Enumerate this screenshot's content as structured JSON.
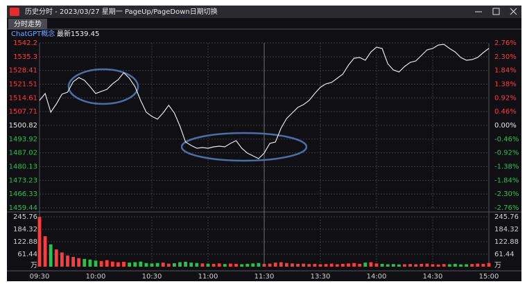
{
  "window": {
    "title": "历史分时 - 2023/03/27 星期一 PageUp/PageDown日期切换",
    "tab": "分时走势"
  },
  "chart_data": [
    {
      "type": "line",
      "legend_latest": "最新1539.45",
      "xlim": [
        0,
        80
      ],
      "xticks": [
        {
          "value": 0,
          "label": "09:30"
        },
        {
          "value": 10,
          "label": "10:00"
        },
        {
          "value": 20,
          "label": "10:30"
        },
        {
          "value": 30,
          "label": "11:00"
        },
        {
          "value": 40,
          "label": "11:30"
        },
        {
          "value": 50,
          "label": "13:30"
        },
        {
          "value": 60,
          "label": "14:00"
        },
        {
          "value": 70,
          "label": "14:30"
        },
        {
          "value": 80,
          "label": "15:00"
        }
      ],
      "ylim": [
        1459.44,
        1542.2
      ],
      "yticks": [
        1542.2,
        1535.3,
        1528.41,
        1521.51,
        1514.61,
        1507.71,
        1500.82,
        1493.92,
        1487.02,
        1480.13,
        1473.23,
        1466.33,
        1459.44
      ],
      "y2lim": [
        -2.76,
        2.76
      ],
      "y2ticks": [
        {
          "value": 2.76,
          "label": "2.76%"
        },
        {
          "value": 2.3,
          "label": "2.30%"
        },
        {
          "value": 1.84,
          "label": "1.84%"
        },
        {
          "value": 1.38,
          "label": "1.38%"
        },
        {
          "value": 0.92,
          "label": "0.92%"
        },
        {
          "value": 0.46,
          "label": "0.46%"
        },
        {
          "value": 0.0,
          "label": "0.00%"
        },
        {
          "value": -0.46,
          "label": "-0.46%"
        },
        {
          "value": -0.92,
          "label": "-0.92%"
        },
        {
          "value": -1.38,
          "label": "-1.38%"
        },
        {
          "value": -1.84,
          "label": "-1.84%"
        },
        {
          "value": -2.3,
          "label": "-2.30%"
        },
        {
          "value": -2.76,
          "label": "-2.76%"
        }
      ],
      "grid": true,
      "up_color": "#ff3b3b",
      "down_color": "#27c24c",
      "flat_color": "#e8e8e8",
      "series": [
        {
          "name": "ChatGPT概念",
          "color": "#e6e6e6",
          "values": [
            1513.34,
            1516.82,
            1507.43,
            1511.6,
            1516.47,
            1517.51,
            1522.73,
            1524.81,
            1523.42,
            1520.29,
            1516.82,
            1517.86,
            1518.9,
            1521.68,
            1523.77,
            1527.25,
            1524.47,
            1520.29,
            1513.34,
            1507.43,
            1505.34,
            1503.95,
            1507.08,
            1510.9,
            1507.08,
            1500.47,
            1492.47,
            1490.74,
            1489.35,
            1489.69,
            1489.35,
            1490.04,
            1490.39,
            1490.04,
            1491.78,
            1493.17,
            1489.35,
            1486.91,
            1485.52,
            1484.13,
            1486.91,
            1491.78,
            1492.47,
            1499.43,
            1504.3,
            1507.08,
            1509.86,
            1511.25,
            1513.34,
            1516.82,
            1519.95,
            1521.68,
            1522.38,
            1524.47,
            1526.55,
            1531.07,
            1534.55,
            1534.9,
            1533.51,
            1537.68,
            1540.11,
            1539.42,
            1531.77,
            1528.64,
            1527.6,
            1530.38,
            1532.46,
            1533.16,
            1535.94,
            1538.72,
            1539.42,
            1541.16,
            1541.5,
            1539.42,
            1537.68,
            1534.9,
            1533.51,
            1533.85,
            1534.9,
            1537.33,
            1539.45
          ]
        }
      ]
    },
    {
      "type": "bar",
      "xlim": [
        0,
        80
      ],
      "ylim": [
        0,
        245.76
      ],
      "yticks": [
        245.76,
        184.32,
        122.88,
        61.44,
        {
          "value": 0,
          "label": "万"
        }
      ],
      "values": [
        245,
        150,
        110,
        85,
        70,
        55,
        48,
        42,
        38,
        35,
        30,
        28,
        32,
        25,
        22,
        24,
        20,
        22,
        25,
        18,
        16,
        18,
        20,
        15,
        17,
        22,
        24,
        20,
        18,
        16,
        15,
        14,
        16,
        13,
        15,
        14,
        12,
        14,
        16,
        18,
        14,
        15,
        20,
        22,
        18,
        16,
        14,
        15,
        13,
        14,
        12,
        13,
        15,
        12,
        14,
        16,
        18,
        14,
        20,
        22,
        16,
        14,
        12,
        13,
        11,
        12,
        13,
        12,
        14,
        15,
        12,
        11,
        13,
        12,
        14,
        11,
        12,
        13,
        15,
        14,
        18
      ]
    }
  ]
}
